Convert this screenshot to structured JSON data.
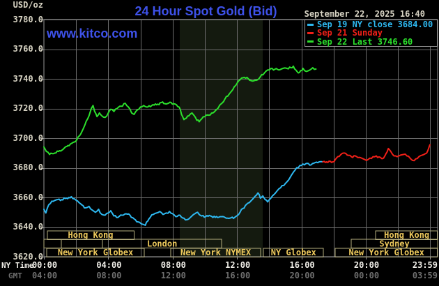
{
  "header": {
    "units_label": "USD/oz",
    "title": "24 Hour Spot Gold (Bid)",
    "datetime": "September 22, 2025 16:40",
    "watermark": "www.kitco.com"
  },
  "legend": {
    "items": [
      {
        "label": "Sep 19 NY close 3684.00",
        "color": "#2eb8f0"
      },
      {
        "label": "Sep 21 Sunday",
        "color": "#f02018"
      },
      {
        "label": "Sep 22 Last 3746.60",
        "color": "#2ce02c"
      }
    ]
  },
  "colors": {
    "background": "#000000",
    "grid": "#6d6d6d",
    "border": "#999999",
    "nymex_band": "#141a0f",
    "blue_text": "#3e52ea",
    "tick_text": "#d8d4c4",
    "ny_time_text": "#efede7",
    "gmt_text": "#6f6f6f",
    "session_border": "#b5ae7e",
    "session_text": "#edc95c",
    "cyan": "#2eb8f0",
    "red": "#f02018",
    "green": "#2ce02c"
  },
  "x_axis": {
    "row1_label": "NY Time",
    "row2_label": "GMT",
    "ticks": [
      {
        "h": 0,
        "ny": "00:00",
        "gmt": "04:00"
      },
      {
        "h": 4,
        "ny": "04:00",
        "gmt": "08:00"
      },
      {
        "h": 8,
        "ny": "08:00",
        "gmt": "12:00"
      },
      {
        "h": 12,
        "ny": "12:00",
        "gmt": "16:00"
      },
      {
        "h": 16,
        "ny": "16:00",
        "gmt": "20:00"
      },
      {
        "h": 20,
        "ny": "20:00",
        "gmt": "00:00"
      },
      {
        "h": 23.9833,
        "ny": "23:59",
        "gmt": "03:59"
      }
    ]
  },
  "y_axis": {
    "ticks": [
      {
        "v": 3780,
        "label": "3780.0"
      },
      {
        "v": 3760,
        "label": "3760.0"
      },
      {
        "v": 3740,
        "label": "3740.0"
      },
      {
        "v": 3720,
        "label": "3720.0"
      },
      {
        "v": 3700,
        "label": "3700.0"
      },
      {
        "v": 3680,
        "label": "3680.0"
      },
      {
        "v": 3660,
        "label": "3660.0"
      },
      {
        "v": 3640,
        "label": "3640.0"
      },
      {
        "v": 3620,
        "label": "3620.0"
      }
    ]
  },
  "sessions": [
    {
      "row": 0,
      "start": 0.2,
      "end": 5.6,
      "label": "Hong Kong"
    },
    {
      "row": 0,
      "start": 20.62,
      "end": 24.48,
      "label": "Hong Kong"
    },
    {
      "row": 1,
      "start": 0.0,
      "end": 1.08,
      "label": ""
    },
    {
      "row": 1,
      "start": 1.08,
      "end": 3.64,
      "label": ""
    },
    {
      "row": 1,
      "start": 3.64,
      "end": 11.05,
      "label": "London"
    },
    {
      "row": 1,
      "start": 19.1,
      "end": 24.48,
      "label": "Sydney"
    },
    {
      "row": 2,
      "start": 0.17,
      "end": 6.24,
      "label": "New York Globex"
    },
    {
      "row": 2,
      "start": 7.88,
      "end": 13.47,
      "label": "New York NYMEX"
    },
    {
      "row": 2,
      "start": 13.65,
      "end": 17.37,
      "label": "NY Globex"
    },
    {
      "row": 2,
      "start": 18.11,
      "end": 24.48,
      "label": "New York Globex"
    }
  ],
  "chart_data": {
    "type": "line",
    "title": "24 Hour Spot Gold (Bid)",
    "x_unit": "NY time, hours (0 = midnight)",
    "ylabel": "USD/oz",
    "ylim": [
      3620,
      3780
    ],
    "xlim_hours": [
      0,
      24.48
    ],
    "y_grid_step": 20,
    "x_grid_step_hours": 2,
    "grid": true,
    "legend_position": "top-right",
    "nymex_band_hours": [
      8.45,
      13.6
    ],
    "series": [
      {
        "name": "Sep 19 NY close",
        "color": "#2eb8f0",
        "close": 3684.0,
        "points": [
          [
            0,
            3652
          ],
          [
            0.12,
            3649.5
          ],
          [
            0.3,
            3655
          ],
          [
            0.5,
            3657.5
          ],
          [
            0.8,
            3658.5
          ],
          [
            1.1,
            3658.5
          ],
          [
            1.4,
            3659.5
          ],
          [
            1.7,
            3660.5
          ],
          [
            1.9,
            3659
          ],
          [
            2.1,
            3657.5
          ],
          [
            2.35,
            3655
          ],
          [
            2.6,
            3653
          ],
          [
            2.8,
            3654
          ],
          [
            3,
            3651.5
          ],
          [
            3.2,
            3650
          ],
          [
            3.4,
            3652
          ],
          [
            3.6,
            3648.5
          ],
          [
            3.8,
            3648
          ],
          [
            4,
            3649.5
          ],
          [
            4.15,
            3651
          ],
          [
            4.35,
            3647.5
          ],
          [
            4.6,
            3646.5
          ],
          [
            4.85,
            3648
          ],
          [
            5.1,
            3649
          ],
          [
            5.35,
            3648
          ],
          [
            5.6,
            3645.5
          ],
          [
            5.85,
            3643.5
          ],
          [
            6.1,
            3642
          ],
          [
            6.3,
            3641.2
          ],
          [
            6.45,
            3644
          ],
          [
            6.6,
            3646.5
          ],
          [
            6.8,
            3648.5
          ],
          [
            7,
            3649.5
          ],
          [
            7.2,
            3650.5
          ],
          [
            7.4,
            3648.5
          ],
          [
            7.6,
            3649.5
          ],
          [
            7.8,
            3650.5
          ],
          [
            8,
            3649
          ],
          [
            8.2,
            3647
          ],
          [
            8.45,
            3648
          ],
          [
            8.7,
            3646
          ],
          [
            8.9,
            3645
          ],
          [
            9.1,
            3646.5
          ],
          [
            9.3,
            3648.5
          ],
          [
            9.55,
            3650
          ],
          [
            9.8,
            3647.5
          ],
          [
            10.05,
            3647
          ],
          [
            10.35,
            3647.5
          ],
          [
            10.65,
            3646.5
          ],
          [
            10.95,
            3647
          ],
          [
            11.25,
            3646.5
          ],
          [
            11.55,
            3646
          ],
          [
            11.85,
            3646.5
          ],
          [
            12.1,
            3648.5
          ],
          [
            12.35,
            3652.5
          ],
          [
            12.6,
            3655.5
          ],
          [
            12.85,
            3657.5
          ],
          [
            13.1,
            3660.5
          ],
          [
            13.3,
            3663
          ],
          [
            13.45,
            3659.5
          ],
          [
            13.6,
            3661
          ],
          [
            13.75,
            3658.5
          ],
          [
            13.9,
            3657
          ],
          [
            14.1,
            3659.5
          ],
          [
            14.3,
            3662
          ],
          [
            14.5,
            3664.5
          ],
          [
            14.7,
            3666.5
          ],
          [
            14.9,
            3668
          ],
          [
            15.1,
            3670.5
          ],
          [
            15.3,
            3673.5
          ],
          [
            15.5,
            3677
          ],
          [
            15.7,
            3680
          ],
          [
            15.9,
            3681.5
          ],
          [
            16.1,
            3682.5
          ],
          [
            16.35,
            3683
          ],
          [
            16.6,
            3682
          ],
          [
            16.85,
            3683.5
          ],
          [
            17.1,
            3684
          ],
          [
            17.33,
            3684
          ]
        ]
      },
      {
        "name": "Sep 21 Sunday",
        "color": "#f02018",
        "points": [
          [
            17.33,
            3684
          ],
          [
            17.95,
            3684
          ],
          [
            18.1,
            3685.5
          ],
          [
            18.25,
            3687.5
          ],
          [
            18.45,
            3689
          ],
          [
            18.65,
            3690
          ],
          [
            18.85,
            3688.5
          ],
          [
            19.1,
            3687.5
          ],
          [
            19.35,
            3688
          ],
          [
            19.6,
            3687
          ],
          [
            19.85,
            3686
          ],
          [
            20.05,
            3685
          ],
          [
            20.25,
            3686.5
          ],
          [
            20.45,
            3687.5
          ],
          [
            20.65,
            3688
          ],
          [
            20.9,
            3687
          ],
          [
            21.1,
            3686.5
          ],
          [
            21.25,
            3689.5
          ],
          [
            21.4,
            3693
          ],
          [
            21.55,
            3691
          ],
          [
            21.75,
            3688
          ],
          [
            21.95,
            3687.5
          ],
          [
            22.15,
            3688.5
          ],
          [
            22.35,
            3689
          ],
          [
            22.55,
            3688
          ],
          [
            22.75,
            3686.5
          ],
          [
            22.9,
            3685
          ],
          [
            23.1,
            3686
          ],
          [
            23.3,
            3687.5
          ],
          [
            23.5,
            3688.5
          ],
          [
            23.7,
            3689.5
          ],
          [
            23.85,
            3691.5
          ],
          [
            23.98,
            3695.5
          ]
        ]
      },
      {
        "name": "Sep 22 Last",
        "color": "#2ce02c",
        "last": 3746.6,
        "points": [
          [
            0,
            3694
          ],
          [
            0.15,
            3691
          ],
          [
            0.35,
            3689
          ],
          [
            0.6,
            3689.5
          ],
          [
            0.9,
            3691
          ],
          [
            1.2,
            3692.5
          ],
          [
            1.5,
            3695
          ],
          [
            1.8,
            3697
          ],
          [
            2.05,
            3699
          ],
          [
            2.3,
            3703
          ],
          [
            2.55,
            3709
          ],
          [
            2.8,
            3715
          ],
          [
            2.95,
            3720
          ],
          [
            3.05,
            3722
          ],
          [
            3.15,
            3718
          ],
          [
            3.3,
            3714.5
          ],
          [
            3.45,
            3717
          ],
          [
            3.6,
            3715
          ],
          [
            3.8,
            3714
          ],
          [
            4,
            3717
          ],
          [
            4.15,
            3719.5
          ],
          [
            4.35,
            3718
          ],
          [
            4.55,
            3720
          ],
          [
            4.8,
            3721.5
          ],
          [
            5.05,
            3723.5
          ],
          [
            5.25,
            3721
          ],
          [
            5.45,
            3717
          ],
          [
            5.6,
            3716
          ],
          [
            5.8,
            3719
          ],
          [
            6,
            3721
          ],
          [
            6.2,
            3722
          ],
          [
            6.45,
            3721
          ],
          [
            6.7,
            3722
          ],
          [
            7,
            3722.5
          ],
          [
            7.3,
            3724
          ],
          [
            7.6,
            3723
          ],
          [
            7.9,
            3724
          ],
          [
            8.15,
            3723
          ],
          [
            8.4,
            3721
          ],
          [
            8.55,
            3716
          ],
          [
            8.7,
            3712.5
          ],
          [
            8.85,
            3713.5
          ],
          [
            9,
            3715
          ],
          [
            9.2,
            3717
          ],
          [
            9.35,
            3715
          ],
          [
            9.5,
            3712
          ],
          [
            9.65,
            3711
          ],
          [
            9.8,
            3713
          ],
          [
            10,
            3714.5
          ],
          [
            10.25,
            3715.5
          ],
          [
            10.5,
            3717
          ],
          [
            10.75,
            3719.5
          ],
          [
            11,
            3723
          ],
          [
            11.25,
            3726.5
          ],
          [
            11.5,
            3729.5
          ],
          [
            11.75,
            3733
          ],
          [
            12,
            3737
          ],
          [
            12.2,
            3739.5
          ],
          [
            12.45,
            3741
          ],
          [
            12.7,
            3740
          ],
          [
            12.95,
            3738.5
          ],
          [
            13.2,
            3739
          ],
          [
            13.45,
            3741.5
          ],
          [
            13.7,
            3744
          ],
          [
            13.9,
            3746
          ],
          [
            14.1,
            3747
          ],
          [
            14.35,
            3746.5
          ],
          [
            14.6,
            3746
          ],
          [
            14.85,
            3747
          ],
          [
            15.1,
            3747
          ],
          [
            15.35,
            3747.5
          ],
          [
            15.5,
            3748.5
          ],
          [
            15.65,
            3746
          ],
          [
            15.8,
            3744
          ],
          [
            15.95,
            3745.5
          ],
          [
            16.1,
            3747
          ],
          [
            16.3,
            3745
          ],
          [
            16.5,
            3745.8
          ],
          [
            16.7,
            3747.5
          ],
          [
            16.9,
            3746.6
          ]
        ]
      }
    ]
  }
}
